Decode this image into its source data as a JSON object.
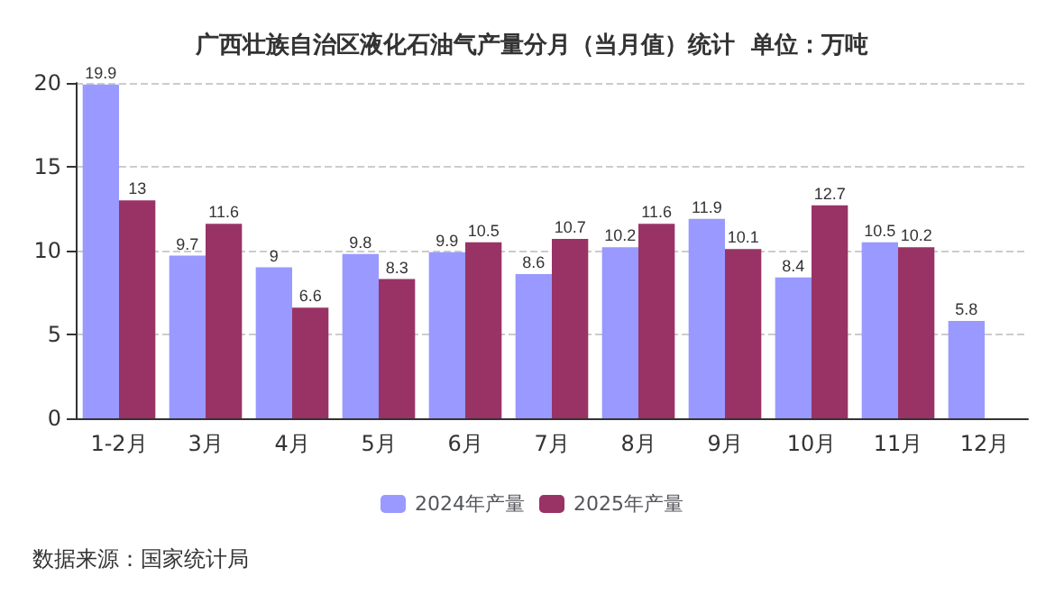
{
  "chart_data": {
    "type": "bar",
    "title": "广西壮族自治区液化石油气产量分月（当月值）统计  单位：万吨",
    "categories": [
      "1-2月",
      "3月",
      "4月",
      "5月",
      "6月",
      "7月",
      "8月",
      "9月",
      "10月",
      "11月",
      "12月"
    ],
    "series": [
      {
        "name": "2024年产量",
        "color": "#9999ff",
        "values": [
          19.9,
          9.7,
          9,
          9.8,
          9.9,
          8.6,
          10.2,
          11.9,
          8.4,
          10.5,
          5.8
        ]
      },
      {
        "name": "2025年产量",
        "color": "#993366",
        "values": [
          13,
          11.6,
          6.6,
          8.3,
          10.5,
          10.7,
          11.6,
          10.1,
          12.7,
          10.2,
          null
        ]
      }
    ],
    "ylim": [
      0,
      20
    ],
    "yticks": [
      0,
      5,
      10,
      15,
      20
    ],
    "grid": "y",
    "legend": "bottom",
    "data_labels": true,
    "annotations": [
      "数据来源：国家统计局"
    ]
  }
}
